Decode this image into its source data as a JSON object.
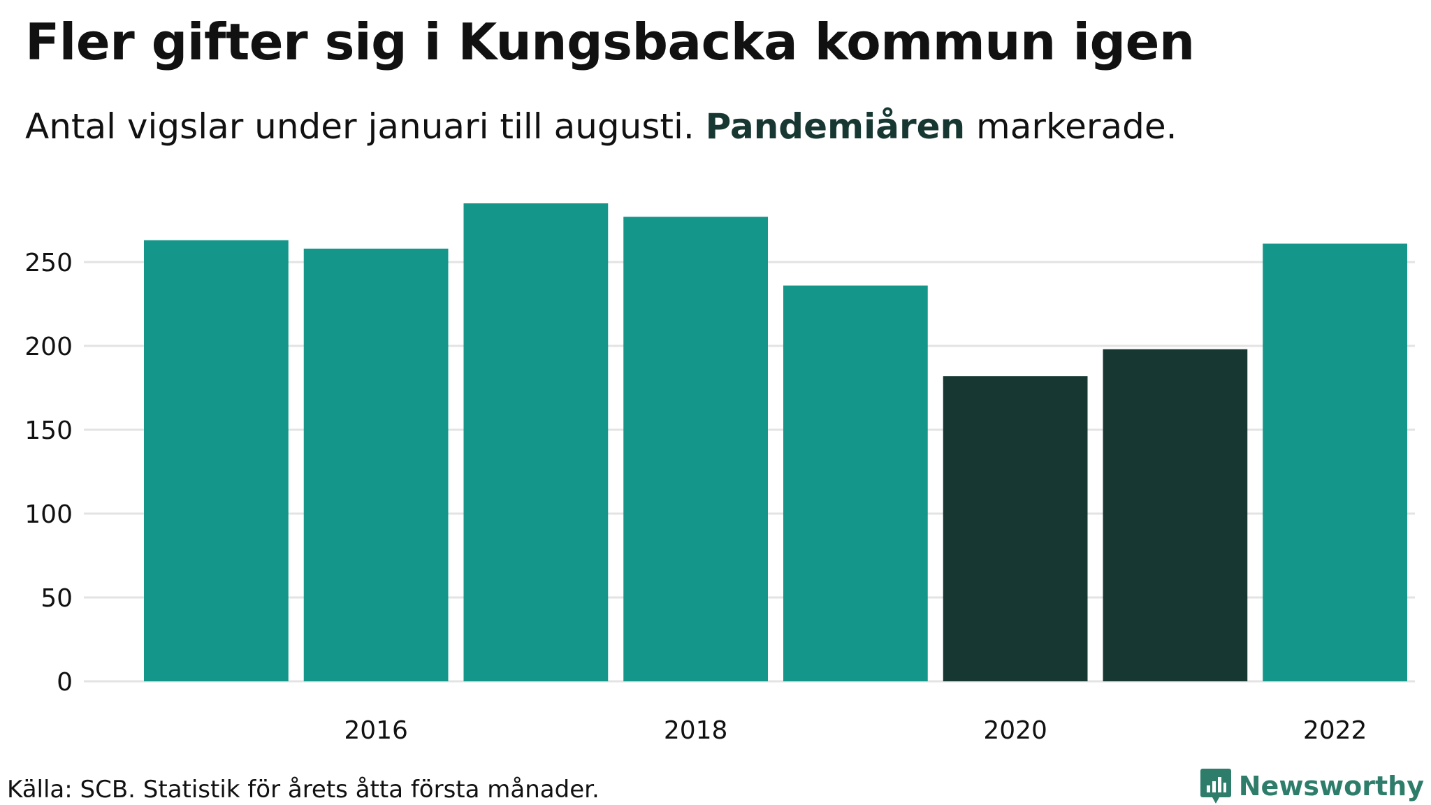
{
  "title": "Fler gifter sig i Kungsbacka kommun igen",
  "subtitle": {
    "before": "Antal vigslar under januari till augusti. ",
    "highlight": "Pandemiåren",
    "after": " markerade."
  },
  "source": "Källa: SCB. Statistik för årets åtta första månader.",
  "brand": {
    "name": "Newsworthy",
    "color": "#2e7d6b",
    "icon": "bar-chart-speech-bubble-icon"
  },
  "colors": {
    "default": "#14968a",
    "highlight": "#173832",
    "grid": "#e3e3e3",
    "text": "#111111"
  },
  "chart_data": {
    "type": "bar",
    "categories": [
      "2015",
      "2016",
      "2017",
      "2018",
      "2019",
      "2020",
      "2021",
      "2022"
    ],
    "values": [
      263,
      258,
      285,
      277,
      236,
      182,
      198,
      261
    ],
    "highlighted": [
      "2020",
      "2021"
    ],
    "xticks": [
      "2016",
      "2018",
      "2020",
      "2022"
    ],
    "yticks": [
      0,
      50,
      100,
      150,
      200,
      250
    ],
    "ylim": [
      0,
      285
    ],
    "grid": true,
    "title": "Fler gifter sig i Kungsbacka kommun igen",
    "subtitle": "Antal vigslar under januari till augusti. Pandemiåren markerade.",
    "xlabel": "",
    "ylabel": ""
  }
}
